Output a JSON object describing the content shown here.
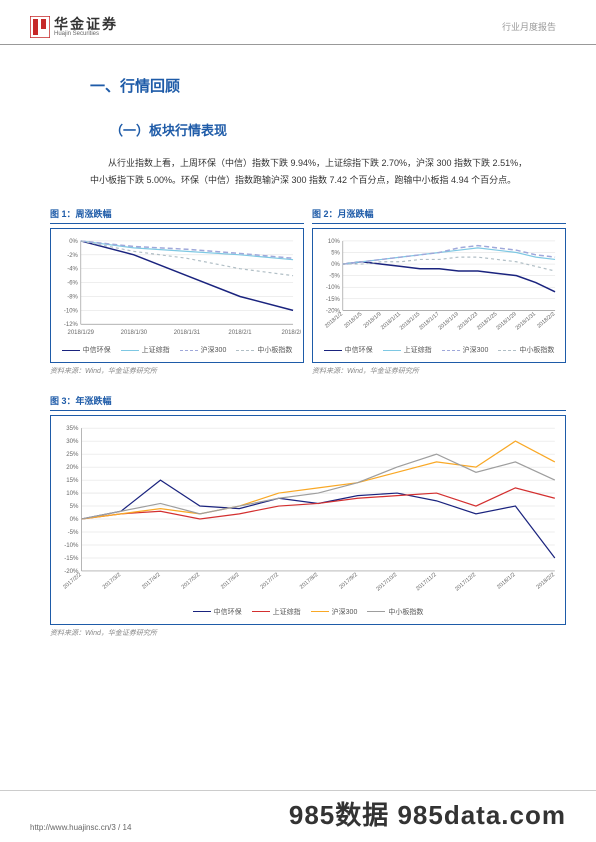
{
  "header": {
    "brand_cn": "华金证券",
    "brand_en": "Huajin Securities",
    "report_type": "行业月度报告"
  },
  "h1": "一、行情回顾",
  "h2": "（一）板块行情表现",
  "body": "从行业指数上看，上周环保（中信）指数下跌 9.94%，上证综指下跌 2.70%，沪深 300 指数下跌 2.51%，中小板指下跌 5.00%。环保（中信）指数跑输沪深 300 指数 7.42 个百分点，跑输中小板指 4.94 个百分点。",
  "chart1": {
    "title": "图 1：周涨跌幅",
    "dates": [
      "2018/1/29",
      "2018/1/30",
      "2018/1/31",
      "2018/2/1",
      "2018/2/2"
    ],
    "ylim": [
      -12,
      0
    ],
    "ytick_step": 2,
    "series": [
      {
        "name": "中信环保",
        "color": "#1a237e",
        "dash": "",
        "width": 1.5,
        "values": [
          0,
          -2,
          -5,
          -8,
          -10
        ]
      },
      {
        "name": "上证综指",
        "color": "#7ec8e3",
        "dash": "",
        "width": 1.2,
        "values": [
          0,
          -1,
          -1.5,
          -2,
          -2.7
        ]
      },
      {
        "name": "沪深300",
        "color": "#9fa8da",
        "dash": "5,3",
        "width": 1.5,
        "values": [
          0,
          -0.8,
          -1.2,
          -1.8,
          -2.5
        ]
      },
      {
        "name": "中小板指数",
        "color": "#b0bec5",
        "dash": "3,3",
        "width": 1.2,
        "values": [
          0,
          -1.5,
          -2.5,
          -4,
          -5
        ]
      }
    ],
    "source": "资料来源：Wind，华金证券研究所"
  },
  "chart2": {
    "title": "图 2：月涨跌幅",
    "dates": [
      "2018/1/2",
      "2018/1/5",
      "2018/1/9",
      "2018/1/11",
      "2018/1/15",
      "2018/1/17",
      "2018/1/19",
      "2018/1/23",
      "2018/1/25",
      "2018/1/29",
      "2018/1/31",
      "2018/2/2"
    ],
    "ylim": [
      -20,
      10
    ],
    "ytick_step": 5,
    "series": [
      {
        "name": "中信环保",
        "color": "#1a237e",
        "dash": "",
        "width": 1.5,
        "values": [
          0,
          1,
          0,
          -1,
          -2,
          -2,
          -3,
          -3,
          -4,
          -5,
          -8,
          -12
        ]
      },
      {
        "name": "上证综指",
        "color": "#7ec8e3",
        "dash": "",
        "width": 1.2,
        "values": [
          0,
          1,
          2,
          3,
          4,
          5,
          6,
          7,
          6,
          5,
          3,
          2
        ]
      },
      {
        "name": "沪深300",
        "color": "#9fa8da",
        "dash": "5,3",
        "width": 1.5,
        "values": [
          0,
          1,
          2,
          3,
          4,
          5,
          7,
          8,
          7,
          6,
          4,
          3
        ]
      },
      {
        "name": "中小板指数",
        "color": "#b0bec5",
        "dash": "3,3",
        "width": 1.2,
        "values": [
          0,
          0,
          1,
          1,
          2,
          2,
          3,
          3,
          2,
          1,
          -1,
          -3
        ]
      }
    ],
    "source": "资料来源：Wind，华金证券研究所"
  },
  "chart3": {
    "title": "图 3：年涨跌幅",
    "dates": [
      "2017/2/2",
      "2017/3/2",
      "2017/4/2",
      "2017/5/2",
      "2017/6/2",
      "2017/7/2",
      "2017/8/2",
      "2017/9/2",
      "2017/10/2",
      "2017/11/2",
      "2017/12/2",
      "2018/1/2",
      "2018/2/2"
    ],
    "ylim": [
      -20,
      35
    ],
    "ytick_step": 5,
    "series": [
      {
        "name": "中信环保",
        "color": "#1a237e",
        "dash": "",
        "width": 1.2,
        "values": [
          0,
          3,
          15,
          5,
          4,
          8,
          6,
          9,
          10,
          7,
          2,
          5,
          -15
        ]
      },
      {
        "name": "上证综指",
        "color": "#d32f2f",
        "dash": "",
        "width": 1.2,
        "values": [
          0,
          2,
          3,
          0,
          2,
          5,
          6,
          8,
          9,
          10,
          5,
          12,
          8
        ]
      },
      {
        "name": "沪深300",
        "color": "#f9a825",
        "dash": "",
        "width": 1.2,
        "values": [
          0,
          2,
          4,
          2,
          5,
          10,
          12,
          14,
          18,
          22,
          20,
          30,
          22
        ]
      },
      {
        "name": "中小板指数",
        "color": "#9e9e9e",
        "dash": "",
        "width": 1.2,
        "values": [
          0,
          3,
          6,
          2,
          5,
          8,
          10,
          14,
          20,
          25,
          18,
          22,
          15
        ]
      }
    ],
    "source": "资料来源：Wind，华金证券研究所"
  },
  "footer": {
    "url": "http://www.huajinsc.cn/3 / 14",
    "watermark": "985数据 985data.com"
  }
}
